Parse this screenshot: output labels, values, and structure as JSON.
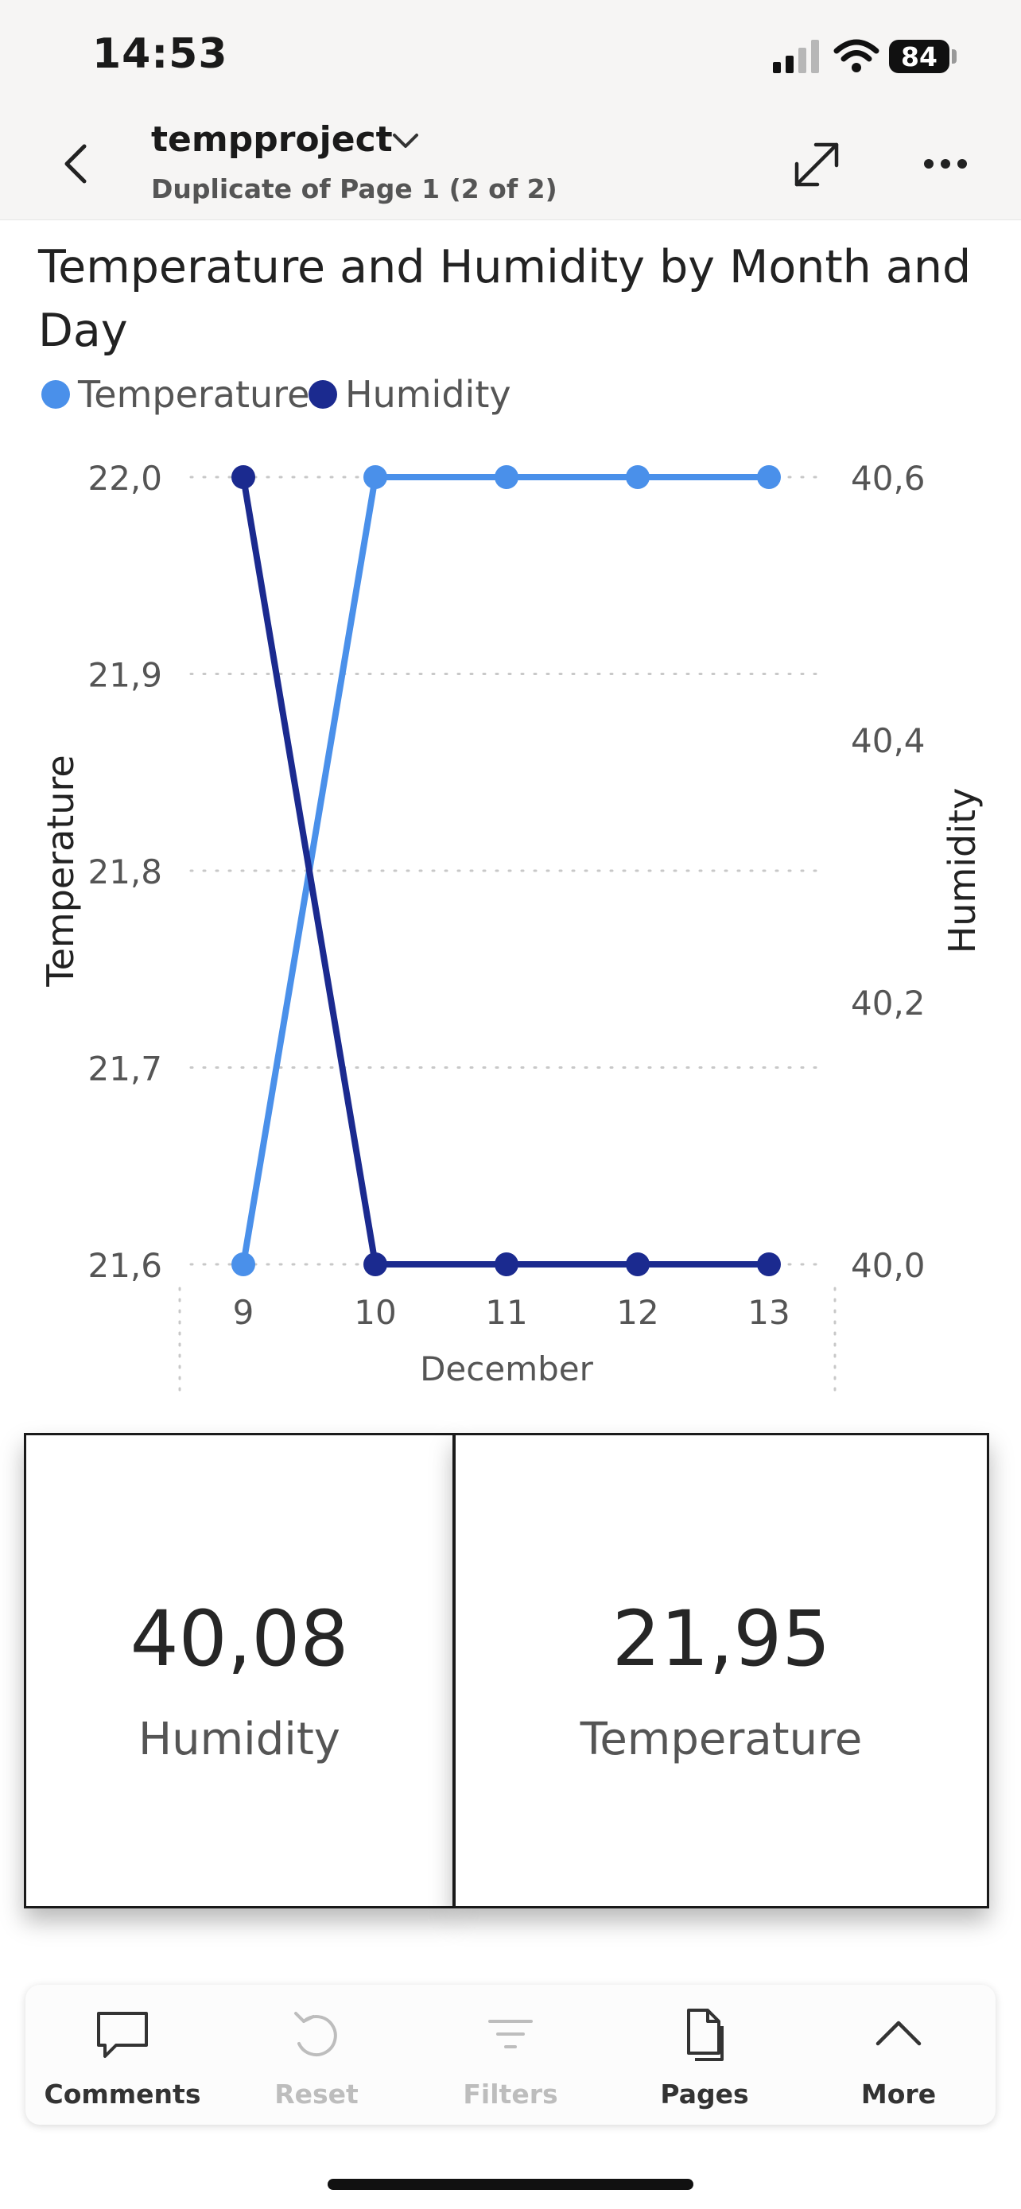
{
  "status_bar": {
    "time": "14:53",
    "battery": "84"
  },
  "header": {
    "title": "tempproject",
    "subtitle": "Duplicate of Page 1 (2 of 2)",
    "icons": [
      "back-chevron-icon",
      "chevron-down-icon",
      "expand-icon",
      "more-icon"
    ]
  },
  "chart_data": {
    "type": "line",
    "title": "Temperature and Humidity by Month and Day",
    "xlabel": "December",
    "ylabel": "Temperature",
    "y2label": "Humidity",
    "x": [
      "9",
      "10",
      "11",
      "12",
      "13"
    ],
    "ylim": [
      21.6,
      22.0
    ],
    "y2lim": [
      40.0,
      40.6
    ],
    "yticks": [
      "21,6",
      "21,7",
      "21,8",
      "21,9",
      "22,0"
    ],
    "y2ticks": [
      "40,0",
      "40,2",
      "40,4",
      "40,6"
    ],
    "series": [
      {
        "name": "Temperature",
        "axis": "left",
        "color": "#4a90ea",
        "values": [
          21.6,
          22.0,
          22.0,
          22.0,
          22.0
        ]
      },
      {
        "name": "Humidity",
        "axis": "right",
        "color": "#1b2a8f",
        "values": [
          40.6,
          40.0,
          40.0,
          40.0,
          40.0
        ]
      }
    ],
    "legend": "top-left",
    "grid": "horizontal-dotted"
  },
  "cards": [
    {
      "value": "40,08",
      "label": "Humidity"
    },
    {
      "value": "21,95",
      "label": "Temperature"
    }
  ],
  "toolbar": {
    "comments": "Comments",
    "reset": "Reset",
    "filters": "Filters",
    "pages": "Pages",
    "more": "More"
  }
}
